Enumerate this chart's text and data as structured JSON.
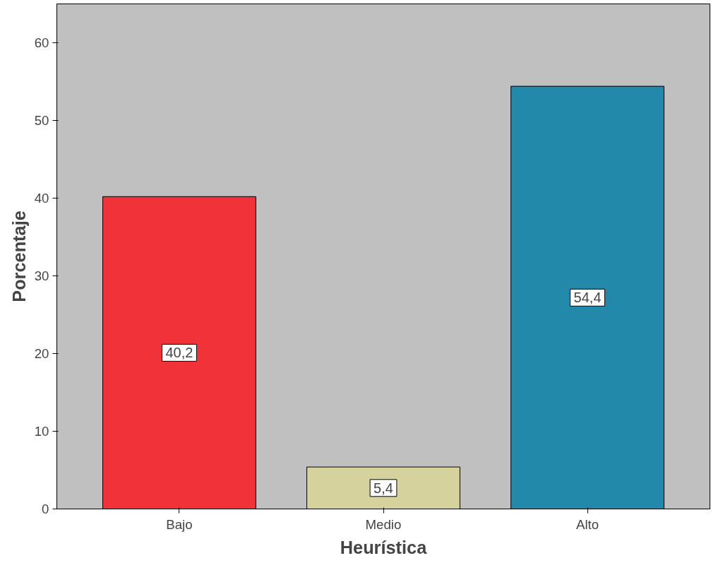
{
  "chart_data": {
    "type": "bar",
    "xlabel": "Heurística",
    "ylabel": "Porcentaje",
    "categories": [
      "Bajo",
      "Medio",
      "Alto"
    ],
    "values": [
      40.2,
      5.4,
      54.4
    ],
    "colors": [
      "#ef3338",
      "#d6d29e",
      "#2389ab"
    ],
    "value_labels": [
      "40,2",
      "5,4",
      "54,4"
    ],
    "ylim": [
      0,
      65
    ],
    "yticks": [
      0,
      10,
      20,
      30,
      40,
      50,
      60
    ],
    "grid": false
  }
}
